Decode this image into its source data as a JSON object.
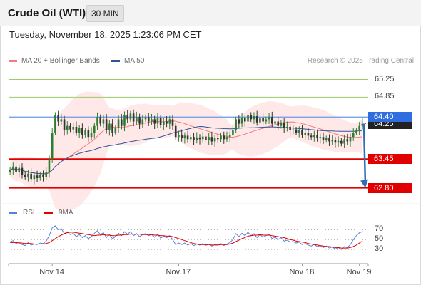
{
  "header": {
    "title": "Crude Oil (WTI)",
    "interval": "30 MIN"
  },
  "datetime": "Tuesday, November 18, 2025 1:23:06 PM CET",
  "legend": {
    "ma20": "MA 20 + Bollinger Bands",
    "ma50": "MA 50",
    "credit": "Research © 2025 Trading Central"
  },
  "colors": {
    "ma20": "#f47c7c",
    "ma50": "#2f5597",
    "candle_up": "#2e7d32",
    "candle_down": "#333333",
    "pivot": "#6a9ae8",
    "support": "#e00000",
    "resistance": "#9ccc65",
    "rsi": "#5b7fd6",
    "rsi_ma": "#e00000",
    "arrow": "#2f6db5"
  },
  "chart_data": [
    {
      "type": "candlestick",
      "y_range": [
        62.6,
        65.5
      ],
      "price_levels": [
        {
          "label": "65.25",
          "value": 65.25,
          "kind": "resistance"
        },
        {
          "label": "64.85",
          "value": 64.85,
          "kind": "resistance"
        },
        {
          "label": "64.40",
          "value": 64.4,
          "kind": "pivot"
        },
        {
          "label": "64.25",
          "value": 64.25,
          "kind": "last"
        },
        {
          "label": "63.45",
          "value": 63.45,
          "kind": "support"
        },
        {
          "label": "62.80",
          "value": 62.8,
          "kind": "support"
        }
      ],
      "x_labels": [
        "Nov 14",
        "Nov 17",
        "Nov 18",
        "Nov 19"
      ],
      "close": [
        63.2,
        63.28,
        63.15,
        63.25,
        63.1,
        63.05,
        63.12,
        63.0,
        63.08,
        63.02,
        63.1,
        63.05,
        63.15,
        63.45,
        64.05,
        64.45,
        64.3,
        64.35,
        64.1,
        64.2,
        64.12,
        64.18,
        64.05,
        64.15,
        64.0,
        64.1,
        63.95,
        64.05,
        64.2,
        64.4,
        64.25,
        64.35,
        64.1,
        64.25,
        64.05,
        64.15,
        64.35,
        64.2,
        64.45,
        64.35,
        64.48,
        64.3,
        64.4,
        64.25,
        64.35,
        64.4,
        64.3,
        64.35,
        64.25,
        64.38,
        64.22,
        64.3,
        64.25,
        64.35,
        64.2,
        63.95,
        64.0,
        63.92,
        63.98,
        63.9,
        63.95,
        63.88,
        63.94,
        63.9,
        63.96,
        63.88,
        63.95,
        63.85,
        63.92,
        63.9,
        63.98,
        63.9,
        63.95,
        64.0,
        64.1,
        64.35,
        64.25,
        64.38,
        64.3,
        64.45,
        64.35,
        64.42,
        64.28,
        64.38,
        64.3,
        64.35,
        64.4,
        64.25,
        64.3,
        64.2,
        64.28,
        64.15,
        64.18,
        64.1,
        64.12,
        64.05,
        64.1,
        64.0,
        64.05,
        63.98,
        63.95,
        64.0,
        63.92,
        63.95,
        63.88,
        63.92,
        63.85,
        63.88,
        63.82,
        63.86,
        63.8,
        63.9,
        63.85,
        63.95,
        64.05,
        64.1,
        64.2,
        64.25
      ]
    },
    {
      "type": "line",
      "title": "RSI",
      "series": [
        {
          "name": "RSI"
        },
        {
          "name": "9MA"
        }
      ],
      "y_ticks": [
        70,
        50,
        30
      ],
      "y_range": [
        10,
        85
      ],
      "rsi": [
        45,
        48,
        42,
        46,
        40,
        38,
        44,
        39,
        41,
        40,
        43,
        42,
        47,
        58,
        74,
        78,
        70,
        72,
        62,
        66,
        60,
        63,
        56,
        60,
        54,
        58,
        52,
        56,
        63,
        68,
        60,
        64,
        54,
        60,
        52,
        56,
        63,
        58,
        66,
        61,
        66,
        58,
        62,
        56,
        60,
        62,
        58,
        60,
        55,
        61,
        53,
        57,
        54,
        58,
        50,
        40,
        43,
        40,
        43,
        39,
        42,
        38,
        41,
        39,
        42,
        38,
        41,
        37,
        40,
        39,
        42,
        38,
        41,
        44,
        50,
        62,
        56,
        63,
        58,
        65,
        58,
        62,
        54,
        60,
        55,
        58,
        61,
        52,
        55,
        50,
        54,
        47,
        49,
        45,
        46,
        43,
        45,
        40,
        42,
        39,
        37,
        40,
        36,
        38,
        34,
        37,
        33,
        35,
        31,
        34,
        30,
        36,
        34,
        40,
        50,
        58,
        64,
        66
      ],
      "rsi_ma": [
        44,
        44,
        44,
        43,
        43,
        42,
        42,
        42,
        41,
        41,
        41,
        41,
        42,
        44,
        48,
        52,
        56,
        59,
        62,
        64,
        65,
        65,
        64,
        63,
        62,
        61,
        60,
        59,
        58,
        59,
        59,
        60,
        59,
        59,
        58,
        58,
        59,
        59,
        60,
        60,
        61,
        61,
        61,
        61,
        60,
        60,
        60,
        60,
        59,
        59,
        58,
        58,
        57,
        57,
        56,
        54,
        52,
        50,
        48,
        46,
        44,
        42,
        41,
        40,
        40,
        40,
        40,
        39,
        39,
        39,
        40,
        40,
        40,
        41,
        43,
        46,
        49,
        52,
        54,
        57,
        58,
        59,
        59,
        60,
        59,
        59,
        59,
        58,
        57,
        56,
        55,
        54,
        52,
        50,
        49,
        47,
        46,
        45,
        44,
        42,
        41,
        40,
        39,
        38,
        37,
        36,
        36,
        35,
        34,
        34,
        33,
        33,
        33,
        34,
        36,
        39,
        43,
        47
      ]
    }
  ]
}
